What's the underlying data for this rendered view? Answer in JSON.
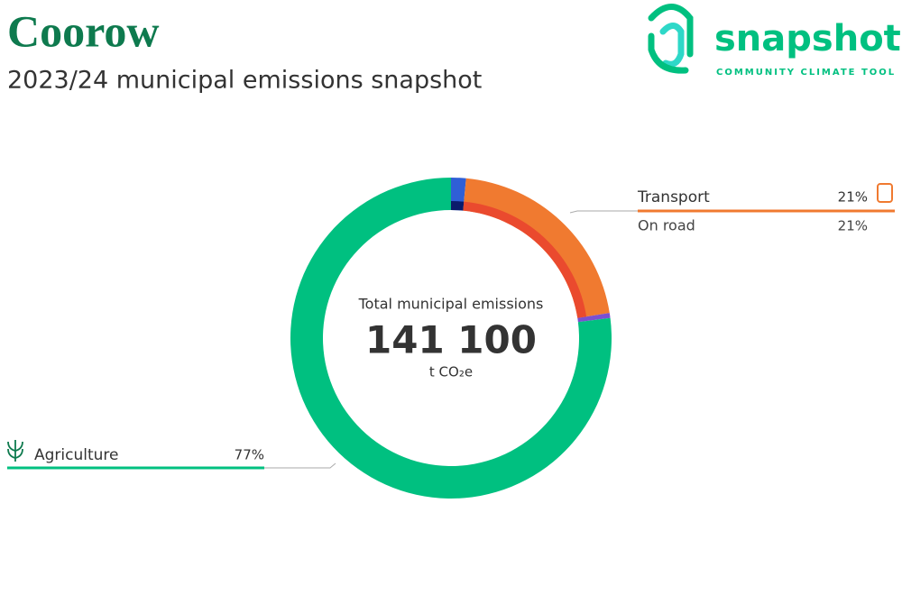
{
  "header": {
    "title": "Coorow",
    "subtitle": "2023/24 municipal emissions snapshot"
  },
  "logo": {
    "name": "snapshot",
    "tagline": "COMMUNITY CLIMATE TOOL"
  },
  "chart_data": {
    "type": "donut",
    "center_title": "Total municipal emissions",
    "total": {
      "value": 141100,
      "label": "141 100"
    },
    "unit": "t CO₂e",
    "rings": [
      {
        "categories": [
          null,
          "Transport",
          null,
          "Agriculture"
        ],
        "values": [
          1.5,
          21,
          0.5,
          77
        ],
        "value_labels": [
          null,
          "21%",
          null,
          "77%"
        ],
        "colors": [
          "#2f5fd6",
          "#f07a30",
          "#7a50d0",
          "#00c080"
        ]
      },
      {
        "categories": [
          null,
          "On road"
        ],
        "values": [
          1.5,
          21
        ],
        "value_labels": [
          null,
          "21%"
        ],
        "colors": [
          "#0b1b6b",
          "#ea4a2e"
        ]
      }
    ]
  }
}
